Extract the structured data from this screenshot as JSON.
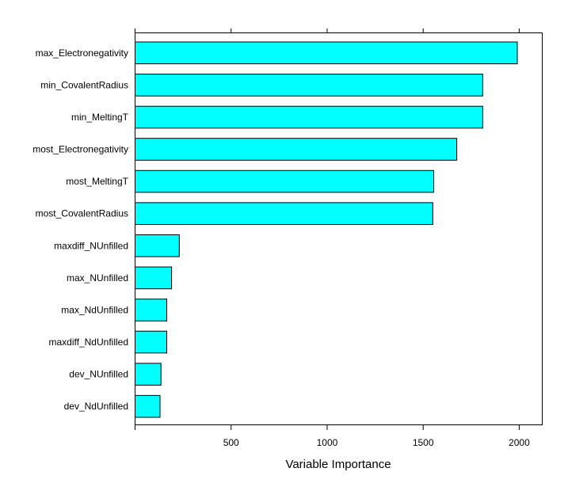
{
  "chart_data": {
    "type": "bar",
    "orientation": "horizontal",
    "xlabel": "Variable Importance",
    "xlim": [
      0,
      2120
    ],
    "xticks": [
      500,
      1000,
      1500,
      2000
    ],
    "xtick_labels": [
      "500",
      "1000",
      "1500",
      "2000"
    ],
    "bar_color": "#00FFFF",
    "bar_edge_color": "#000000",
    "categories": [
      "max_Electronegativity",
      "min_CovalentRadius",
      "min_MeltingT",
      "most_Electronegativity",
      "most_MeltingT",
      "most_CovalentRadius",
      "maxdiff_NUnfilled",
      "max_NUnfilled",
      "max_NdUnfilled",
      "maxdiff_NdUnfilled",
      "dev_NUnfilled",
      "dev_NdUnfilled"
    ],
    "values": [
      1990,
      1810,
      1810,
      1675,
      1555,
      1550,
      230,
      190,
      165,
      165,
      135,
      130
    ]
  }
}
